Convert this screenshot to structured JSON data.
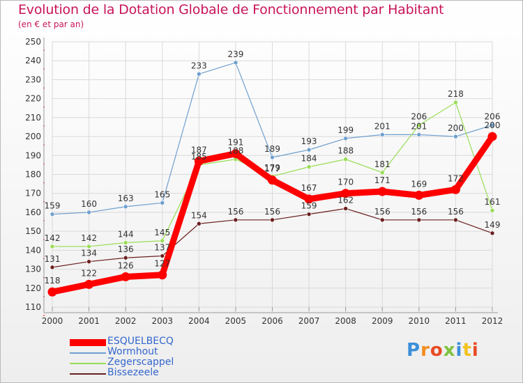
{
  "header": {
    "title": "Evolution de la Dotation Globale de Fonctionnement par Habitant",
    "subtitle": "(en € et par an)"
  },
  "logo": {
    "text": "Proxiti",
    "colors": [
      "#3b8fd9",
      "#f28c1e",
      "#e84b24",
      "#7fc241",
      "#3b8fd9",
      "#f2c21e",
      "#e84b24"
    ]
  },
  "colors": {
    "grid": "#d9d9d9",
    "axis": "#999999",
    "tick_red": "#ff0000",
    "text": "#333333"
  },
  "chart_data": {
    "type": "line",
    "title": "Evolution de la Dotation Globale de Fonctionnement par Habitant",
    "ylabel": "(en € et par an)",
    "xlabel": "",
    "x": [
      "2000",
      "2001",
      "2002",
      "2003",
      "2004",
      "2005",
      "2006",
      "2007",
      "2008",
      "2009",
      "2010",
      "2011",
      "2012"
    ],
    "ylim": [
      110,
      250
    ],
    "yticks": [
      110,
      120,
      130,
      140,
      150,
      160,
      170,
      180,
      190,
      200,
      210,
      220,
      230,
      240,
      250
    ],
    "grid": true,
    "series": [
      {
        "name": "ESQUELBECQ",
        "color": "#ff0000",
        "values": [
          118,
          122,
          126,
          127,
          187,
          191,
          177,
          167,
          170,
          171,
          169,
          172,
          200
        ]
      },
      {
        "name": "Wormhout",
        "color": "#6f9fcf",
        "values": [
          159,
          160,
          163,
          165,
          233,
          239,
          189,
          193,
          199,
          201,
          201,
          200,
          206
        ]
      },
      {
        "name": "Zegerscappel",
        "color": "#99dd55",
        "values": [
          142,
          142,
          144,
          145,
          185,
          188,
          179,
          184,
          188,
          181,
          206,
          218,
          161
        ]
      },
      {
        "name": "Bissezeele",
        "color": "#6b1f1f",
        "values": [
          131,
          134,
          136,
          137,
          154,
          156,
          156,
          159,
          162,
          156,
          156,
          156,
          149
        ]
      }
    ]
  }
}
